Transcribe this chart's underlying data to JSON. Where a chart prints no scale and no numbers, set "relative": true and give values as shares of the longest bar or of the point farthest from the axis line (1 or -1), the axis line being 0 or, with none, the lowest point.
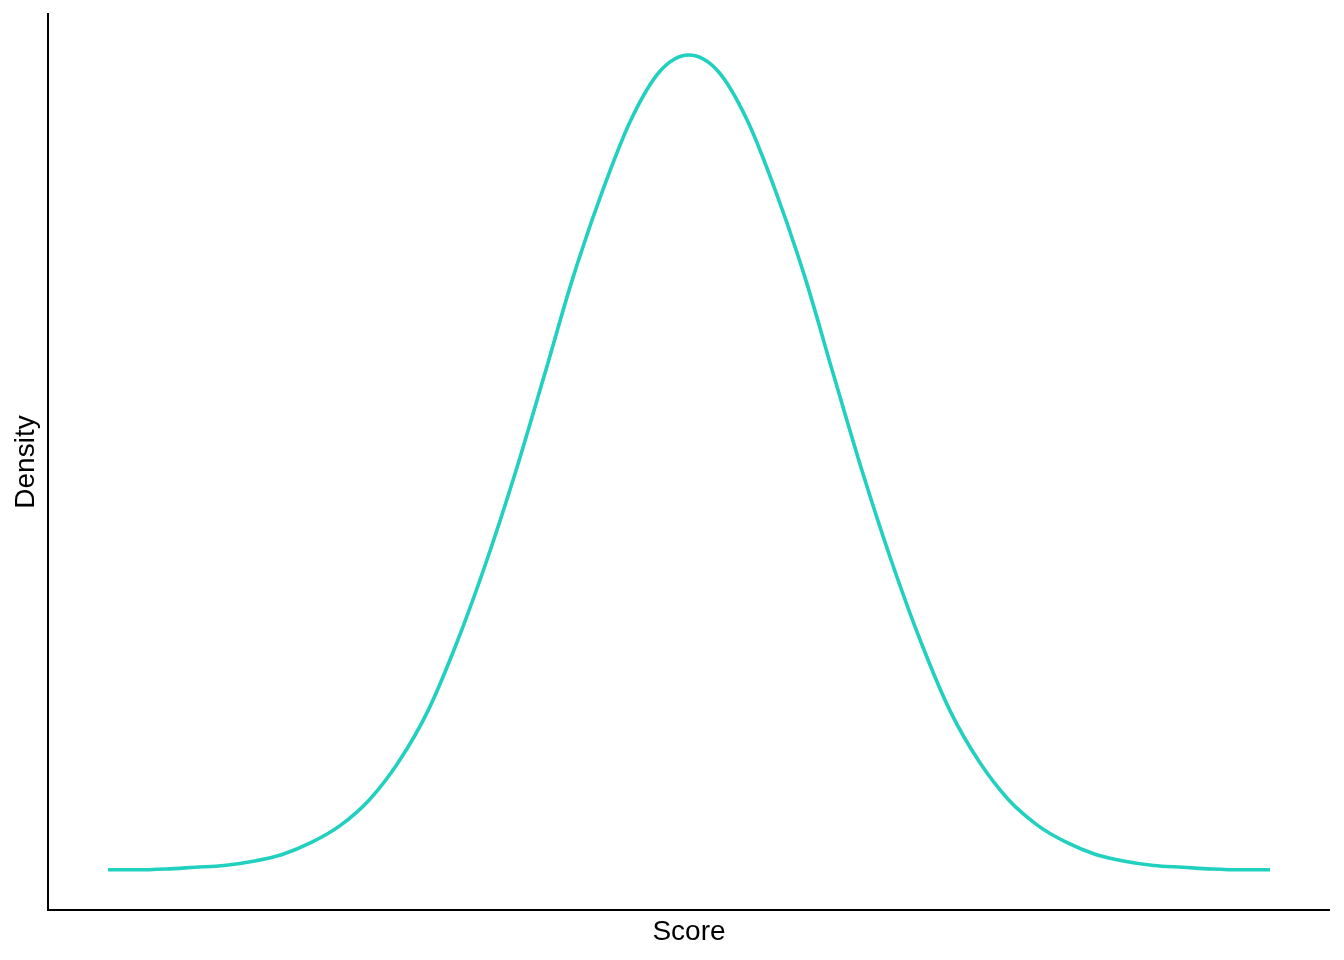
{
  "chart_data": {
    "type": "line",
    "xlabel": "Score",
    "ylabel": "Density",
    "relative": true,
    "categories": [
      null,
      null,
      null,
      null,
      null,
      null,
      null,
      null,
      null,
      null,
      null,
      null,
      null,
      null,
      null,
      null,
      null,
      null,
      null,
      null,
      null,
      null,
      null,
      null,
      null,
      null,
      null,
      null,
      null,
      null,
      null,
      null,
      null,
      null,
      null,
      null,
      null,
      null,
      null,
      null,
      null
    ],
    "color": "#21d0be",
    "values": [
      0.047,
      0.047,
      0.048,
      0.05,
      0.052,
      0.057,
      0.065,
      0.079,
      0.099,
      0.129,
      0.173,
      0.232,
      0.312,
      0.405,
      0.509,
      0.623,
      0.739,
      0.839,
      0.924,
      0.981,
      1.0,
      0.981,
      0.924,
      0.839,
      0.739,
      0.623,
      0.509,
      0.405,
      0.312,
      0.232,
      0.173,
      0.129,
      0.099,
      0.079,
      0.065,
      0.057,
      0.052,
      0.05,
      0.048,
      0.047,
      0.047
    ]
  }
}
